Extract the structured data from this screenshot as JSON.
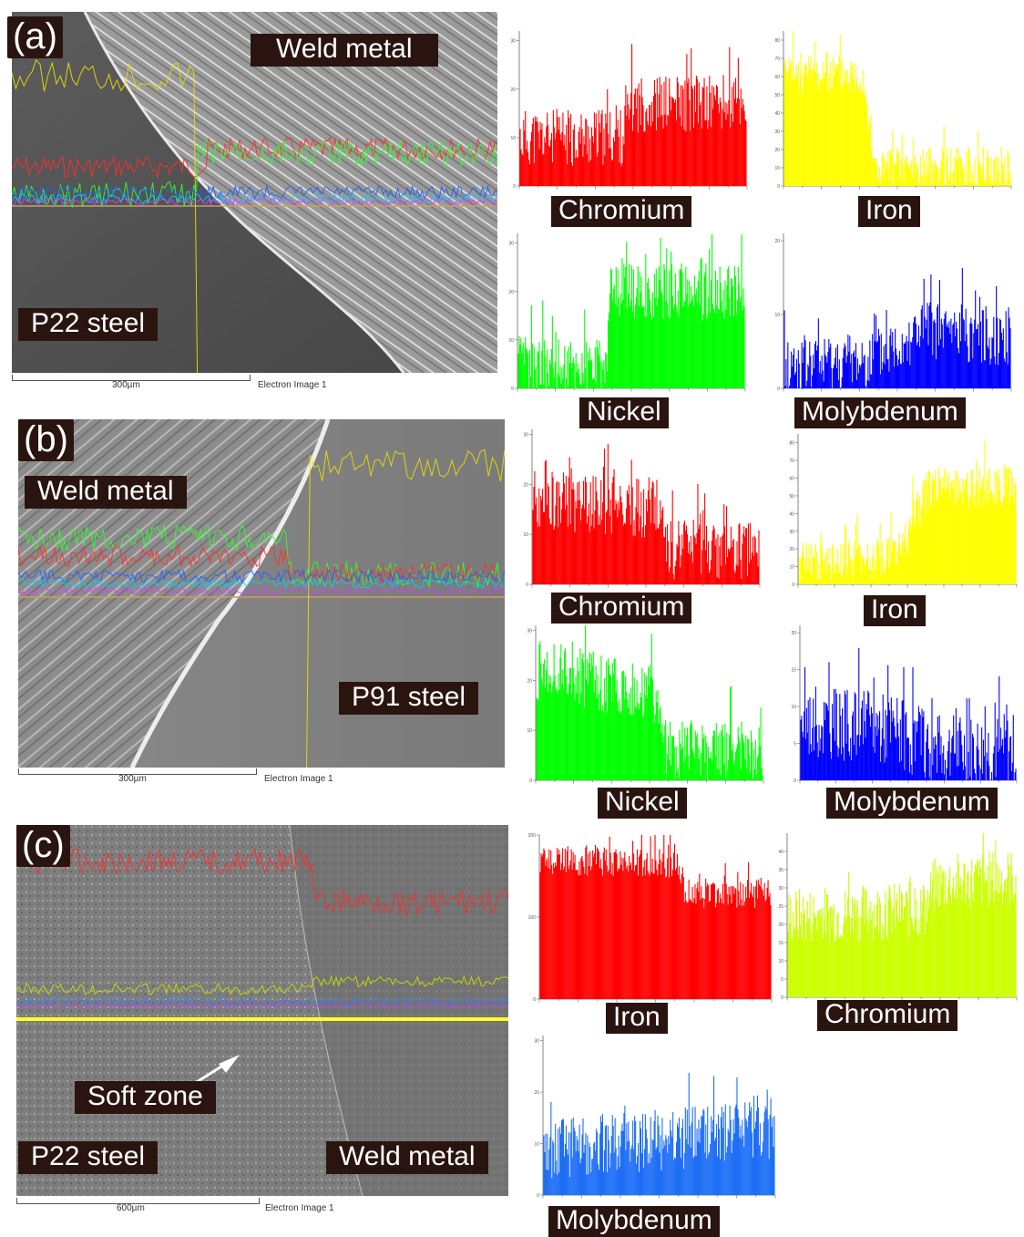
{
  "panels": {
    "a": {
      "letter": "(a)",
      "labels": {
        "weld": "Weld metal",
        "steel": "P22 steel"
      },
      "scale": "300µm",
      "image_caption": "Electron Image 1"
    },
    "b": {
      "letter": "(b)",
      "labels": {
        "weld": "Weld metal",
        "steel": "P91 steel"
      },
      "scale": "300µm",
      "image_caption": "Electron Image 1"
    },
    "c": {
      "letter": "(c)",
      "labels": {
        "soft": "Soft zone",
        "steel": "P22 steel",
        "weld": "Weld metal"
      },
      "scale": "600µm",
      "image_caption": "Electron Image 1"
    }
  },
  "chart_data": [
    {
      "type": "bar",
      "panel": "a",
      "name": "Chromium",
      "color": "#ff0000",
      "ylim": [
        0,
        32
      ],
      "yticks": [
        0,
        10,
        20,
        30
      ],
      "profile": [
        [
          0,
          10
        ],
        [
          0.45,
          10
        ],
        [
          0.5,
          17
        ],
        [
          1,
          17
        ]
      ],
      "noise": 6,
      "seed": 11
    },
    {
      "type": "bar",
      "panel": "a",
      "name": "Iron",
      "color": "#ffff00",
      "ylim": [
        0,
        85
      ],
      "yticks": [
        0,
        10,
        20,
        30,
        40,
        50,
        60,
        70,
        80
      ],
      "profile": [
        [
          0,
          62
        ],
        [
          0.35,
          62
        ],
        [
          0.4,
          10
        ],
        [
          1,
          10
        ]
      ],
      "noise": 12,
      "seed": 23
    },
    {
      "type": "bar",
      "panel": "a",
      "name": "Nickel",
      "color": "#00ff00",
      "ylim": [
        0,
        32
      ],
      "yticks": [
        0,
        10,
        20,
        30
      ],
      "profile": [
        [
          0,
          5
        ],
        [
          0.39,
          5
        ],
        [
          0.41,
          20
        ],
        [
          1,
          20
        ]
      ],
      "noise": 6,
      "seed": 37
    },
    {
      "type": "bar",
      "panel": "a",
      "name": "Molybdenum",
      "color": "#0000ff",
      "ylim": [
        0,
        21
      ],
      "yticks": [
        0,
        10,
        20
      ],
      "profile": [
        [
          0,
          3
        ],
        [
          0.4,
          4
        ],
        [
          0.6,
          8
        ],
        [
          1,
          7
        ]
      ],
      "noise": 4,
      "seed": 41
    },
    {
      "type": "bar",
      "panel": "b",
      "name": "Chromium",
      "color": "#ff0000",
      "ylim": [
        0,
        31
      ],
      "yticks": [
        0,
        10,
        20,
        30
      ],
      "profile": [
        [
          0,
          17
        ],
        [
          0.55,
          15
        ],
        [
          0.6,
          7
        ],
        [
          1,
          7
        ]
      ],
      "noise": 6,
      "seed": 53
    },
    {
      "type": "bar",
      "panel": "b",
      "name": "Iron",
      "color": "#ffff00",
      "ylim": [
        0,
        85
      ],
      "yticks": [
        0,
        10,
        20,
        30,
        40,
        50,
        60,
        70,
        80
      ],
      "profile": [
        [
          0,
          12
        ],
        [
          0.45,
          15
        ],
        [
          0.6,
          55
        ],
        [
          1,
          55
        ]
      ],
      "noise": 12,
      "seed": 61
    },
    {
      "type": "bar",
      "panel": "b",
      "name": "Nickel",
      "color": "#00ff00",
      "ylim": [
        0,
        31
      ],
      "yticks": [
        0,
        10,
        20,
        30
      ],
      "profile": [
        [
          0,
          22
        ],
        [
          0.5,
          18
        ],
        [
          0.58,
          6
        ],
        [
          1,
          6
        ]
      ],
      "noise": 6,
      "seed": 71
    },
    {
      "type": "bar",
      "panel": "b",
      "name": "Molybdenum",
      "color": "#0000ff",
      "ylim": [
        0,
        21
      ],
      "yticks": [
        0,
        5,
        10,
        15,
        20
      ],
      "profile": [
        [
          0,
          8
        ],
        [
          0.45,
          7
        ],
        [
          0.6,
          4
        ],
        [
          1,
          4
        ]
      ],
      "noise": 5,
      "seed": 83
    },
    {
      "type": "bar",
      "panel": "c",
      "name": "Iron",
      "color": "#ff0000",
      "ylim": [
        0,
        200
      ],
      "yticks": [
        0,
        100,
        200
      ],
      "profile": [
        [
          0,
          170
        ],
        [
          0.6,
          165
        ],
        [
          0.63,
          128
        ],
        [
          1,
          128
        ]
      ],
      "noise": 18,
      "seed": 97
    },
    {
      "type": "bar",
      "panel": "c",
      "name": "Chromium",
      "color": "#ccff00",
      "ylim": [
        0,
        45
      ],
      "yticks": [
        0,
        5,
        10,
        15,
        20,
        25,
        30,
        35,
        40
      ],
      "profile": [
        [
          0,
          22
        ],
        [
          0.6,
          24
        ],
        [
          0.65,
          31
        ],
        [
          1,
          33
        ]
      ],
      "noise": 8,
      "seed": 101
    },
    {
      "type": "bar",
      "panel": "c",
      "name": "Molybdenum",
      "color": "#1e6ff5",
      "ylim": [
        0,
        31
      ],
      "yticks": [
        0,
        10,
        20,
        30
      ],
      "profile": [
        [
          0,
          9
        ],
        [
          0.6,
          11
        ],
        [
          1,
          13
        ]
      ],
      "noise": 6,
      "seed": 113
    }
  ]
}
